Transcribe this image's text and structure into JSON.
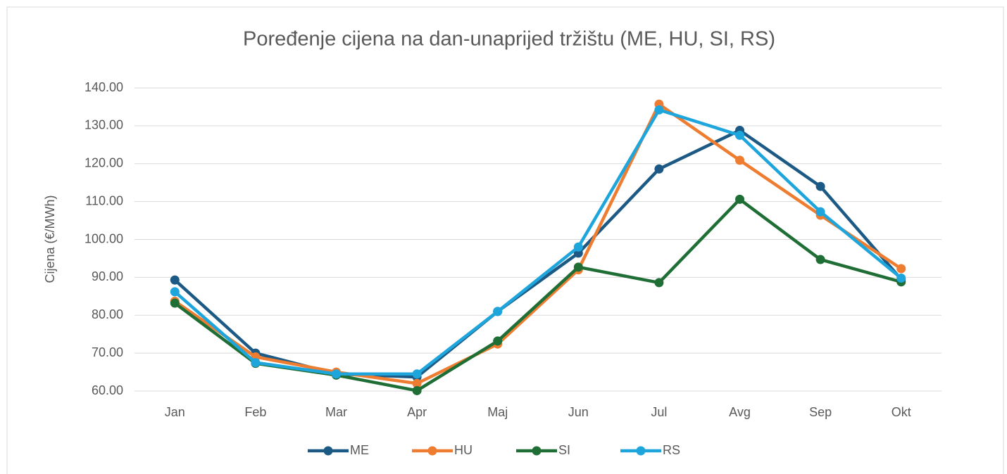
{
  "chart_data": {
    "type": "line",
    "title": "Poređenje cijena na dan-unaprijed tržištu (ME, HU, SI, RS)",
    "y_label": "Cijena (€/MWh)",
    "categories": [
      "Jan",
      "Feb",
      "Mar",
      "Apr",
      "Maj",
      "Jun",
      "Jul",
      "Avg",
      "Sep",
      "Okt"
    ],
    "series": [
      {
        "name": "ME",
        "color": "#1c5a85",
        "values": [
          89.3,
          70.0,
          64.5,
          63.7,
          81.0,
          96.4,
          118.6,
          128.8,
          114.0,
          89.5
        ]
      },
      {
        "name": "HU",
        "color": "#ee7d31",
        "values": [
          83.7,
          69.0,
          65.0,
          62.0,
          72.4,
          92.0,
          135.7,
          120.9,
          106.4,
          92.3
        ]
      },
      {
        "name": "SI",
        "color": "#1e6e36",
        "values": [
          83.2,
          67.3,
          64.2,
          60.1,
          73.2,
          92.7,
          88.6,
          110.6,
          94.7,
          88.8
        ]
      },
      {
        "name": "RS",
        "color": "#1ea5dc",
        "values": [
          86.2,
          67.5,
          64.5,
          64.5,
          81.0,
          98.0,
          134.2,
          127.5,
          107.3,
          89.8
        ]
      }
    ],
    "ylim": [
      60,
      140
    ],
    "yticks": [
      {
        "value": 60,
        "label": "60.00"
      },
      {
        "value": 70,
        "label": "70.00"
      },
      {
        "value": 80,
        "label": "80.00"
      },
      {
        "value": 90,
        "label": "90.00"
      },
      {
        "value": 100,
        "label": "100.00"
      },
      {
        "value": 110,
        "label": "110.00"
      },
      {
        "value": 120,
        "label": "120.00"
      },
      {
        "value": 130,
        "label": "130.00"
      },
      {
        "value": 140,
        "label": "140.00"
      }
    ],
    "grid": true,
    "legend": "bottom"
  }
}
